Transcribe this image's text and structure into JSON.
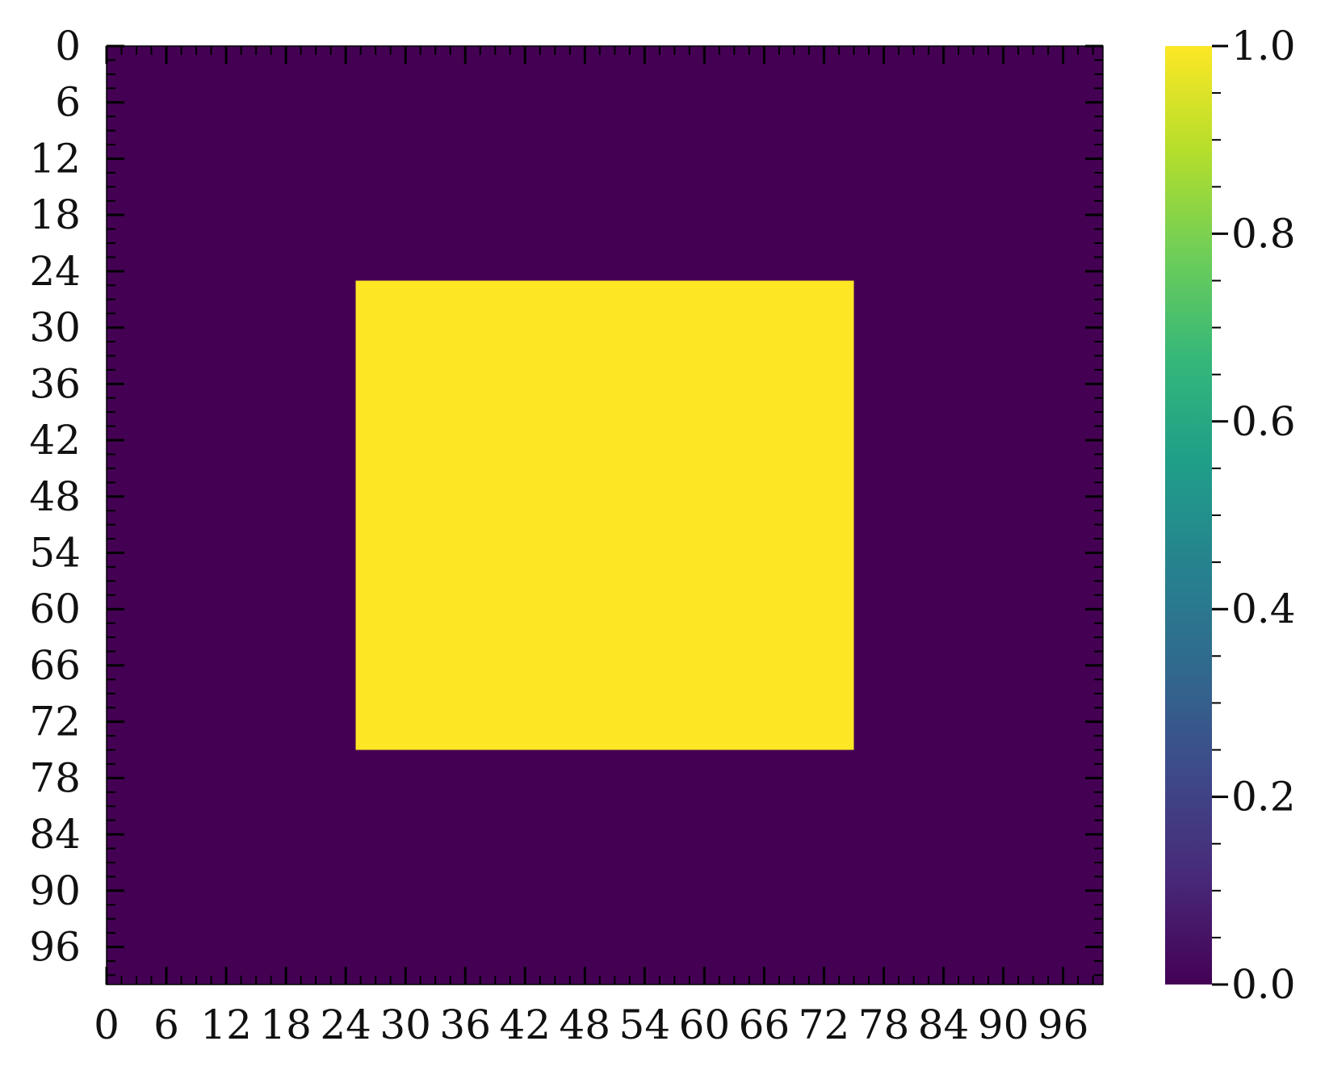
{
  "chart_data": {
    "type": "heatmap",
    "title": "",
    "xlabel": "",
    "ylabel": "",
    "grid_size": [
      100,
      100
    ],
    "x_range": [
      0,
      100
    ],
    "y_range": [
      0,
      100
    ],
    "y_origin": "top",
    "x_ticks": [
      "0",
      "6",
      "12",
      "18",
      "24",
      "30",
      "36",
      "42",
      "48",
      "54",
      "60",
      "66",
      "72",
      "78",
      "84",
      "90",
      "96"
    ],
    "y_ticks": [
      "0",
      "6",
      "12",
      "18",
      "24",
      "30",
      "36",
      "42",
      "48",
      "54",
      "60",
      "66",
      "72",
      "78",
      "84",
      "90",
      "96"
    ],
    "background_value": 0.0,
    "regions": [
      {
        "value": 1.0,
        "x_start": 25,
        "x_end": 75,
        "y_start": 25,
        "y_end": 75
      }
    ],
    "colorbar": {
      "colormap": "viridis",
      "range": [
        0.0,
        1.0
      ],
      "ticks": [
        "0.0",
        "0.2",
        "0.4",
        "0.6",
        "0.8",
        "1.0"
      ],
      "position": "right"
    },
    "colors": {
      "low": "#440154",
      "high": "#fde725",
      "stops": [
        "#440154",
        "#482878",
        "#3e4989",
        "#31688e",
        "#26828e",
        "#1f9e89",
        "#35b779",
        "#6ece58",
        "#b5de2b",
        "#fde725"
      ]
    }
  }
}
